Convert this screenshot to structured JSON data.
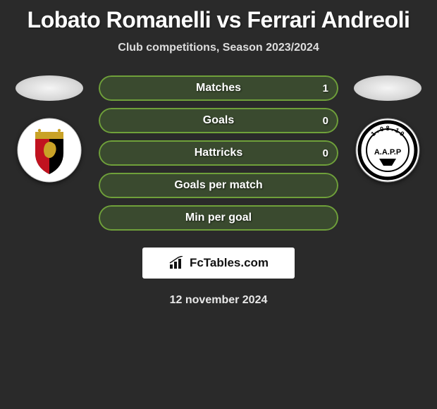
{
  "title": "Lobato Romanelli vs Ferrari Andreoli",
  "subtitle": "Club competitions, Season 2023/2024",
  "date": "12 november 2024",
  "branding_text": "FcTables.com",
  "colors": {
    "pill_border": "#6fa03a",
    "pill_bg": "#3a4a2f",
    "title_color": "#ffffff"
  },
  "left_player": {
    "club_badge": {
      "bg": "#ffffff",
      "stripes": [
        "#000000",
        "#c9a227",
        "#c1121f"
      ],
      "lion_color": "#c9a227"
    }
  },
  "right_player": {
    "club_badge": {
      "bg": "#ffffff",
      "ring_color": "#000000",
      "text": "A.A.P.P",
      "text_color": "#000000",
      "sub_text": "1.08.19"
    }
  },
  "stats": [
    {
      "label": "Matches",
      "right_value": "1"
    },
    {
      "label": "Goals",
      "right_value": "0"
    },
    {
      "label": "Hattricks",
      "right_value": "0"
    },
    {
      "label": "Goals per match",
      "right_value": ""
    },
    {
      "label": "Min per goal",
      "right_value": ""
    }
  ]
}
